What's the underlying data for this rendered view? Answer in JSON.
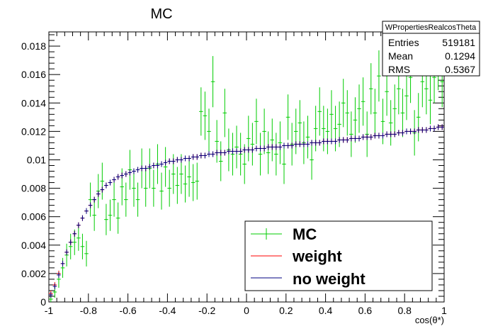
{
  "chart_data": {
    "type": "scatter",
    "title": "MC",
    "xlabel": "cos(θ*)",
    "ylabel": "",
    "xlim": [
      -1,
      1
    ],
    "ylim": [
      0,
      0.019
    ],
    "grid": false,
    "legend_position": "bottom-right",
    "x_ticks": [
      "-1",
      "-0.8",
      "-0.6",
      "-0.4",
      "-0.2",
      "0",
      "0.2",
      "0.4",
      "0.6",
      "0.8",
      "1"
    ],
    "y_ticks": [
      "0",
      "0.002",
      "0.004",
      "0.006",
      "0.008",
      "0.01",
      "0.012",
      "0.014",
      "0.016",
      "0.018"
    ],
    "stats_box": {
      "title": "WPropertiesRealcosTheta",
      "rows": [
        {
          "label": "Entries",
          "value": "519181"
        },
        {
          "label": "Mean",
          "value": "0.1294"
        },
        {
          "label": "RMS",
          "value": "0.5367"
        }
      ]
    },
    "series": [
      {
        "name": "MC",
        "color": "#00cc00",
        "values": [
          0.0002,
          0.0007,
          0.0016,
          0.0024,
          0.0033,
          0.0039,
          0.0042,
          0.0045,
          0.0039,
          0.0034,
          0.0072,
          0.0061,
          0.0078,
          0.0085,
          0.0058,
          0.0061,
          0.0072,
          0.0059,
          0.0081,
          0.0072,
          0.0093,
          0.008,
          0.0072,
          0.0094,
          0.008,
          0.0094,
          0.008,
          0.0097,
          0.0078,
          0.0095,
          0.008,
          0.009,
          0.0082,
          0.009,
          0.0083,
          0.0088,
          0.0084,
          0.0085,
          0.0134,
          0.0131,
          0.012,
          0.0155,
          0.0113,
          0.0099,
          0.0133,
          0.0107,
          0.0104,
          0.0109,
          0.0104,
          0.0097,
          0.0115,
          0.0111,
          0.0127,
          0.0104,
          0.012,
          0.0105,
          0.0114,
          0.0104,
          0.0112,
          0.0097,
          0.013,
          0.0111,
          0.012,
          0.0126,
          0.0112,
          0.0116,
          0.01,
          0.0122,
          0.0134,
          0.0122,
          0.012,
          0.0132,
          0.0122,
          0.0125,
          0.014,
          0.0133,
          0.0118,
          0.0128,
          0.0136,
          0.0141,
          0.0118,
          0.015,
          0.0133,
          0.0159,
          0.0127,
          0.0148,
          0.0126,
          0.0136,
          0.015,
          0.0133,
          0.0145,
          0.0158,
          0.0119,
          0.013,
          0.0155,
          0.015,
          0.0142,
          0.0158,
          0.0168,
          0.0155
        ],
        "errors": [
          0.0003,
          0.0004,
          0.0006,
          0.0007,
          0.0008,
          0.0009,
          0.0009,
          0.0009,
          0.0009,
          0.0009,
          0.0012,
          0.0011,
          0.0012,
          0.0013,
          0.0011,
          0.0011,
          0.0012,
          0.0011,
          0.0013,
          0.0012,
          0.0014,
          0.0013,
          0.0012,
          0.0014,
          0.0013,
          0.0014,
          0.0013,
          0.0014,
          0.0013,
          0.0014,
          0.0013,
          0.0014,
          0.0013,
          0.0014,
          0.0013,
          0.0014,
          0.0013,
          0.0013,
          0.0017,
          0.0017,
          0.0016,
          0.0018,
          0.0015,
          0.0014,
          0.0017,
          0.0015,
          0.0015,
          0.0015,
          0.0015,
          0.0014,
          0.0016,
          0.0015,
          0.0016,
          0.0015,
          0.0016,
          0.0015,
          0.0015,
          0.0015,
          0.0015,
          0.0014,
          0.0016,
          0.0015,
          0.0016,
          0.0016,
          0.0015,
          0.0015,
          0.0014,
          0.0016,
          0.0017,
          0.0016,
          0.0016,
          0.0017,
          0.0016,
          0.0016,
          0.0017,
          0.0016,
          0.0016,
          0.0016,
          0.0017,
          0.0017,
          0.0016,
          0.0018,
          0.0017,
          0.0018,
          0.0016,
          0.0017,
          0.0016,
          0.0017,
          0.0018,
          0.0017,
          0.0017,
          0.0018,
          0.0016,
          0.0017,
          0.0018,
          0.0018,
          0.0017,
          0.0018,
          0.0019,
          0.0018
        ]
      },
      {
        "name": "weight",
        "color": "#ff0000",
        "values": [
          0.0006,
          0.0012,
          0.002,
          0.0027,
          0.0035,
          0.0042,
          0.0048,
          0.0054,
          0.0059,
          0.0064,
          0.0068,
          0.0072,
          0.0076,
          0.0079,
          0.0082,
          0.0084,
          0.0086,
          0.0088,
          0.0089,
          0.009,
          0.0091,
          0.0092,
          0.0093,
          0.0094,
          0.0094,
          0.0095,
          0.0096,
          0.0096,
          0.0097,
          0.0098,
          0.0099,
          0.0099,
          0.01,
          0.01,
          0.0101,
          0.0101,
          0.0102,
          0.0102,
          0.0103,
          0.0103,
          0.0104,
          0.0104,
          0.0105,
          0.0105,
          0.0105,
          0.0106,
          0.0106,
          0.0106,
          0.0106,
          0.0107,
          0.0107,
          0.0107,
          0.0108,
          0.0108,
          0.0108,
          0.0109,
          0.0109,
          0.0109,
          0.0109,
          0.011,
          0.011,
          0.011,
          0.0111,
          0.0111,
          0.0111,
          0.0111,
          0.0112,
          0.0112,
          0.0112,
          0.0113,
          0.0113,
          0.0113,
          0.0113,
          0.0114,
          0.0114,
          0.0114,
          0.0115,
          0.0115,
          0.0115,
          0.0116,
          0.0116,
          0.0116,
          0.0117,
          0.0117,
          0.0117,
          0.0118,
          0.0118,
          0.0118,
          0.0119,
          0.0119,
          0.012,
          0.012,
          0.012,
          0.0121,
          0.0121,
          0.0121,
          0.0122,
          0.0122,
          0.0123,
          0.0123
        ]
      },
      {
        "name": "no weight",
        "color": "#000080",
        "values": [
          0.0005,
          0.0011,
          0.0019,
          0.0027,
          0.0035,
          0.0042,
          0.0048,
          0.0054,
          0.0059,
          0.0064,
          0.0068,
          0.0072,
          0.0076,
          0.0079,
          0.0082,
          0.0084,
          0.0086,
          0.0088,
          0.0089,
          0.009,
          0.0091,
          0.0092,
          0.0093,
          0.0094,
          0.0094,
          0.0095,
          0.0096,
          0.0096,
          0.0097,
          0.0098,
          0.0099,
          0.0099,
          0.01,
          0.01,
          0.0101,
          0.0101,
          0.0102,
          0.0102,
          0.0103,
          0.0103,
          0.0104,
          0.0104,
          0.0105,
          0.0105,
          0.0105,
          0.0106,
          0.0106,
          0.0106,
          0.0106,
          0.0107,
          0.0107,
          0.0107,
          0.0108,
          0.0108,
          0.0108,
          0.0109,
          0.0109,
          0.0109,
          0.0109,
          0.011,
          0.011,
          0.011,
          0.0111,
          0.0111,
          0.0111,
          0.0111,
          0.0112,
          0.0112,
          0.0112,
          0.0113,
          0.0113,
          0.0113,
          0.0113,
          0.0114,
          0.0114,
          0.0114,
          0.0115,
          0.0115,
          0.0115,
          0.0116,
          0.0116,
          0.0116,
          0.0117,
          0.0117,
          0.0117,
          0.0118,
          0.0118,
          0.0118,
          0.0119,
          0.0119,
          0.012,
          0.012,
          0.012,
          0.0121,
          0.0121,
          0.0121,
          0.0122,
          0.0122,
          0.0123,
          0.0123
        ]
      }
    ]
  }
}
